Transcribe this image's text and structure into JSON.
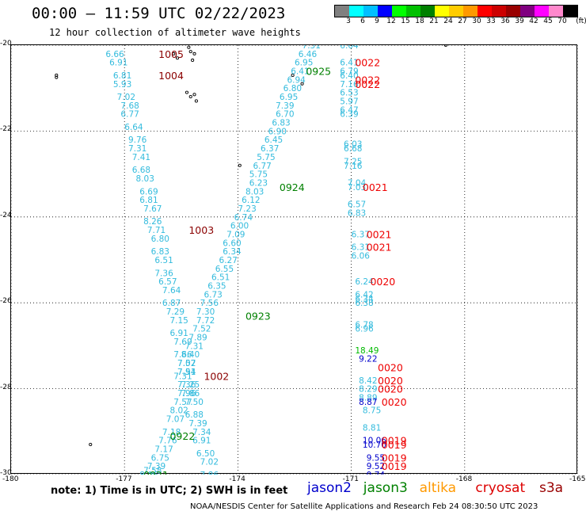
{
  "header": {
    "title": "00:00 — 11:59 UTC 02/22/2023",
    "subtitle": "12 hour collection of altimeter wave heights"
  },
  "color_legend": {
    "unit": "(ft)",
    "labels": [
      "3",
      "6",
      "9",
      "12",
      "15",
      "18",
      "21",
      "24",
      "27",
      "30",
      "33",
      "36",
      "39",
      "42",
      "45",
      "70"
    ],
    "colors": [
      "#808080",
      "#00ffff",
      "#00bfff",
      "#0000ff",
      "#00ff00",
      "#00c000",
      "#008000",
      "#ffff00",
      "#ffcc00",
      "#ff9900",
      "#ff0000",
      "#cc0000",
      "#990000",
      "#800080",
      "#ff00ff",
      "#ff88cc",
      "#000000"
    ]
  },
  "map": {
    "lat_labels": [
      "-20",
      "-22",
      "-24",
      "-26",
      "-28",
      "-30"
    ],
    "lon_labels": [
      "-180",
      "-177",
      "-174",
      "-171",
      "-168",
      "-165"
    ],
    "lon_range": [
      -180,
      -165
    ],
    "lat_range": [
      -30,
      -20
    ],
    "track_color": "#33bbdd",
    "time_color_dark": "#8b0000",
    "time_color_green": "#008000",
    "time_color_red": "#ee0000",
    "time_labels": [
      {
        "text": "1005",
        "lon": -176.1,
        "lat": -20.2,
        "color": "#8b0000"
      },
      {
        "text": "1004",
        "lon": -176.1,
        "lat": -20.7,
        "color": "#8b0000"
      },
      {
        "text": "1003",
        "lon": -175.3,
        "lat": -24.3,
        "color": "#8b0000"
      },
      {
        "text": "1002",
        "lon": -174.9,
        "lat": -27.7,
        "color": "#8b0000"
      },
      {
        "text": "0925",
        "lon": -172.2,
        "lat": -20.6,
        "color": "#008000"
      },
      {
        "text": "0924",
        "lon": -172.9,
        "lat": -23.3,
        "color": "#008000"
      },
      {
        "text": "0923",
        "lon": -173.8,
        "lat": -26.3,
        "color": "#008000"
      },
      {
        "text": "0922",
        "lon": -175.8,
        "lat": -29.1,
        "color": "#008000"
      },
      {
        "text": "0921",
        "lon": -176.5,
        "lat": -30.0,
        "color": "#008000"
      },
      {
        "text": "0022",
        "lon": -170.9,
        "lat": -20.4,
        "color": "#ee0000"
      },
      {
        "text": "0022",
        "lon": -170.9,
        "lat": -20.8,
        "color": "#ee0000"
      },
      {
        "text": "0022",
        "lon": -170.9,
        "lat": -20.9,
        "color": "#ee0000"
      },
      {
        "text": "0021",
        "lon": -170.7,
        "lat": -23.3,
        "color": "#ee0000"
      },
      {
        "text": "0021",
        "lon": -170.6,
        "lat": -24.4,
        "color": "#ee0000"
      },
      {
        "text": "0021",
        "lon": -170.6,
        "lat": -24.7,
        "color": "#ee0000"
      },
      {
        "text": "0020",
        "lon": -170.5,
        "lat": -25.5,
        "color": "#ee0000"
      },
      {
        "text": "0020",
        "lon": -170.3,
        "lat": -27.5,
        "color": "#ee0000"
      },
      {
        "text": "0020",
        "lon": -170.3,
        "lat": -27.8,
        "color": "#ee0000"
      },
      {
        "text": "0020",
        "lon": -170.3,
        "lat": -28.0,
        "color": "#ee0000"
      },
      {
        "text": "0020",
        "lon": -170.2,
        "lat": -28.3,
        "color": "#ee0000"
      },
      {
        "text": "0019",
        "lon": -170.2,
        "lat": -29.2,
        "color": "#ee0000"
      },
      {
        "text": "0019",
        "lon": -170.2,
        "lat": -29.3,
        "color": "#ee0000"
      },
      {
        "text": "0019",
        "lon": -170.2,
        "lat": -29.6,
        "color": "#ee0000"
      },
      {
        "text": "0019",
        "lon": -170.2,
        "lat": -29.8,
        "color": "#ee0000"
      }
    ],
    "wave_heights": [
      {
        "v": "6.66",
        "lon": -177.5,
        "lat": -20.2
      },
      {
        "v": "6.91",
        "lon": -177.4,
        "lat": -20.4
      },
      {
        "v": "6.81",
        "lon": -177.3,
        "lat": -20.7
      },
      {
        "v": "5.93",
        "lon": -177.3,
        "lat": -20.9
      },
      {
        "v": "7.02",
        "lon": -177.2,
        "lat": -21.2
      },
      {
        "v": "7.68",
        "lon": -177.1,
        "lat": -21.4
      },
      {
        "v": "6.77",
        "lon": -177.1,
        "lat": -21.6
      },
      {
        "v": "6.64",
        "lon": -177.0,
        "lat": -21.9
      },
      {
        "v": "9.76",
        "lon": -176.9,
        "lat": -22.2
      },
      {
        "v": "7.31",
        "lon": -176.9,
        "lat": -22.4
      },
      {
        "v": "7.41",
        "lon": -176.8,
        "lat": -22.6
      },
      {
        "v": "6.68",
        "lon": -176.8,
        "lat": -22.9
      },
      {
        "v": "8.03",
        "lon": -176.7,
        "lat": -23.1
      },
      {
        "v": "6.69",
        "lon": -176.6,
        "lat": -23.4
      },
      {
        "v": "6.81",
        "lon": -176.6,
        "lat": -23.6
      },
      {
        "v": "7.67",
        "lon": -176.5,
        "lat": -23.8
      },
      {
        "v": "8.26",
        "lon": -176.5,
        "lat": -24.1
      },
      {
        "v": "7.71",
        "lon": -176.4,
        "lat": -24.3
      },
      {
        "v": "6.80",
        "lon": -176.3,
        "lat": -24.5
      },
      {
        "v": "6.83",
        "lon": -176.3,
        "lat": -24.8
      },
      {
        "v": "6.51",
        "lon": -176.2,
        "lat": -25.0
      },
      {
        "v": "7.36",
        "lon": -176.2,
        "lat": -25.3
      },
      {
        "v": "6.57",
        "lon": -176.1,
        "lat": -25.5
      },
      {
        "v": "7.64",
        "lon": -176.0,
        "lat": -25.7
      },
      {
        "v": "6.87",
        "lon": -176.0,
        "lat": -26.0
      },
      {
        "v": "7.29",
        "lon": -175.9,
        "lat": -26.2
      },
      {
        "v": "7.15",
        "lon": -175.8,
        "lat": -26.4
      },
      {
        "v": "6.91",
        "lon": -175.8,
        "lat": -26.7
      },
      {
        "v": "7.69",
        "lon": -175.7,
        "lat": -26.9
      },
      {
        "v": "7.66",
        "lon": -175.7,
        "lat": -27.2
      },
      {
        "v": "7.02",
        "lon": -175.6,
        "lat": -27.4
      },
      {
        "v": "7.51",
        "lon": -175.6,
        "lat": -27.6
      },
      {
        "v": "7.25",
        "lon": -175.5,
        "lat": -27.9
      },
      {
        "v": "7.96",
        "lon": -175.6,
        "lat": -28.1
      },
      {
        "v": "7.57",
        "lon": -175.7,
        "lat": -28.3
      },
      {
        "v": "8.02",
        "lon": -175.8,
        "lat": -28.5
      },
      {
        "v": "7.07",
        "lon": -175.9,
        "lat": -28.7
      },
      {
        "v": "7.18",
        "lon": -176.0,
        "lat": -29.0
      },
      {
        "v": "7.76",
        "lon": -176.1,
        "lat": -29.2
      },
      {
        "v": "7.17",
        "lon": -176.2,
        "lat": -29.4
      },
      {
        "v": "6.75",
        "lon": -176.3,
        "lat": -29.6
      },
      {
        "v": "7.39",
        "lon": -176.4,
        "lat": -29.8
      },
      {
        "v": "7.58",
        "lon": -176.5,
        "lat": -29.9
      },
      {
        "v": "8.06",
        "lon": -176.6,
        "lat": -30.0
      },
      {
        "v": "7.31",
        "lon": -172.3,
        "lat": -20.0
      },
      {
        "v": "6.46",
        "lon": -172.4,
        "lat": -20.2
      },
      {
        "v": "6.95",
        "lon": -172.5,
        "lat": -20.4
      },
      {
        "v": "6.41",
        "lon": -172.6,
        "lat": -20.6
      },
      {
        "v": "6.94",
        "lon": -172.7,
        "lat": -20.8
      },
      {
        "v": "6.80",
        "lon": -172.8,
        "lat": -21.0
      },
      {
        "v": "6.95",
        "lon": -172.9,
        "lat": -21.2
      },
      {
        "v": "7.39",
        "lon": -173.0,
        "lat": -21.4
      },
      {
        "v": "6.70",
        "lon": -173.0,
        "lat": -21.6
      },
      {
        "v": "6.83",
        "lon": -173.1,
        "lat": -21.8
      },
      {
        "v": "6.90",
        "lon": -173.2,
        "lat": -22.0
      },
      {
        "v": "6.45",
        "lon": -173.3,
        "lat": -22.2
      },
      {
        "v": "6.37",
        "lon": -173.4,
        "lat": -22.4
      },
      {
        "v": "5.75",
        "lon": -173.5,
        "lat": -22.6
      },
      {
        "v": "6.77",
        "lon": -173.6,
        "lat": -22.8
      },
      {
        "v": "5.75",
        "lon": -173.7,
        "lat": -23.0
      },
      {
        "v": "6.23",
        "lon": -173.7,
        "lat": -23.2
      },
      {
        "v": "8.03",
        "lon": -173.8,
        "lat": -23.4
      },
      {
        "v": "6.12",
        "lon": -173.9,
        "lat": -23.6
      },
      {
        "v": "7.23",
        "lon": -174.0,
        "lat": -23.8
      },
      {
        "v": "6.74",
        "lon": -174.1,
        "lat": -24.0
      },
      {
        "v": "6.00",
        "lon": -174.2,
        "lat": -24.2
      },
      {
        "v": "7.09",
        "lon": -174.3,
        "lat": -24.4
      },
      {
        "v": "6.60",
        "lon": -174.4,
        "lat": -24.6
      },
      {
        "v": "6.34",
        "lon": -174.4,
        "lat": -24.8
      },
      {
        "v": "6.27",
        "lon": -174.5,
        "lat": -25.0
      },
      {
        "v": "6.55",
        "lon": -174.6,
        "lat": -25.2
      },
      {
        "v": "6.51",
        "lon": -174.7,
        "lat": -25.4
      },
      {
        "v": "6.35",
        "lon": -174.8,
        "lat": -25.6
      },
      {
        "v": "6.73",
        "lon": -174.9,
        "lat": -25.8
      },
      {
        "v": "7.56",
        "lon": -175.0,
        "lat": -26.0
      },
      {
        "v": "7.30",
        "lon": -175.1,
        "lat": -26.2
      },
      {
        "v": "7.72",
        "lon": -175.1,
        "lat": -26.4
      },
      {
        "v": "7.52",
        "lon": -175.2,
        "lat": -26.6
      },
      {
        "v": "7.89",
        "lon": -175.3,
        "lat": -26.8
      },
      {
        "v": "7.31",
        "lon": -175.4,
        "lat": -27.0
      },
      {
        "v": "8.40",
        "lon": -175.5,
        "lat": -27.2
      },
      {
        "v": "7.57",
        "lon": -175.6,
        "lat": -27.4
      },
      {
        "v": "7.94",
        "lon": -175.6,
        "lat": -27.6
      },
      {
        "v": "7.31",
        "lon": -175.7,
        "lat": -27.7
      },
      {
        "v": "7.36",
        "lon": -175.6,
        "lat": -27.9
      },
      {
        "v": "7.86",
        "lon": -175.5,
        "lat": -28.1
      },
      {
        "v": "7.50",
        "lon": -175.4,
        "lat": -28.3
      },
      {
        "v": "6.88",
        "lon": -175.4,
        "lat": -28.6
      },
      {
        "v": "7.39",
        "lon": -175.3,
        "lat": -28.8
      },
      {
        "v": "7.34",
        "lon": -175.2,
        "lat": -29.0
      },
      {
        "v": "6.91",
        "lon": -175.2,
        "lat": -29.2
      },
      {
        "v": "6.50",
        "lon": -175.1,
        "lat": -29.5
      },
      {
        "v": "7.02",
        "lon": -175.0,
        "lat": -29.7
      },
      {
        "v": "7.86",
        "lon": -175.0,
        "lat": -30.0
      },
      {
        "v": "6.64",
        "lon": -171.3,
        "lat": -20.0
      },
      {
        "v": "6.41",
        "lon": -171.3,
        "lat": -20.4
      },
      {
        "v": "6.79",
        "lon": -171.3,
        "lat": -20.6
      },
      {
        "v": "6.40",
        "lon": -171.3,
        "lat": -20.7
      },
      {
        "v": "7.16",
        "lon": -171.3,
        "lat": -20.9
      },
      {
        "v": "6.53",
        "lon": -171.3,
        "lat": -21.1
      },
      {
        "v": "5.97",
        "lon": -171.3,
        "lat": -21.3
      },
      {
        "v": "6.47",
        "lon": -171.3,
        "lat": -21.5
      },
      {
        "v": "6.39",
        "lon": -171.3,
        "lat": -21.6
      },
      {
        "v": "6.03",
        "lon": -171.2,
        "lat": -22.3
      },
      {
        "v": "6.68",
        "lon": -171.2,
        "lat": -22.4
      },
      {
        "v": "7.25",
        "lon": -171.2,
        "lat": -22.7
      },
      {
        "v": "7.16",
        "lon": -171.2,
        "lat": -22.8
      },
      {
        "v": "7.04",
        "lon": -171.1,
        "lat": -23.2
      },
      {
        "v": "7.03",
        "lon": -171.1,
        "lat": -23.3
      },
      {
        "v": "6.57",
        "lon": -171.1,
        "lat": -23.7
      },
      {
        "v": "6.83",
        "lon": -171.1,
        "lat": -23.9
      },
      {
        "v": "6.37",
        "lon": -171.0,
        "lat": -24.4
      },
      {
        "v": "6.31",
        "lon": -171.0,
        "lat": -24.7
      },
      {
        "v": "6.06",
        "lon": -171.0,
        "lat": -24.9
      },
      {
        "v": "6.24",
        "lon": -170.9,
        "lat": -25.5
      },
      {
        "v": "6.42",
        "lon": -170.9,
        "lat": -25.8
      },
      {
        "v": "6.34",
        "lon": -170.9,
        "lat": -25.9
      },
      {
        "v": "6.38",
        "lon": -170.9,
        "lat": -26.0
      },
      {
        "v": "6.78",
        "lon": -170.9,
        "lat": -26.5
      },
      {
        "v": "6.96",
        "lon": -170.9,
        "lat": -26.6
      },
      {
        "v": "18.49",
        "lon": -170.9,
        "lat": -27.1,
        "c": "#00bb00"
      },
      {
        "v": "9.22",
        "lon": -170.8,
        "lat": -27.3,
        "c": "#0000cc"
      },
      {
        "v": "8.42",
        "lon": -170.8,
        "lat": -27.8
      },
      {
        "v": "8.29",
        "lon": -170.8,
        "lat": -28.0
      },
      {
        "v": "8.89",
        "lon": -170.8,
        "lat": -28.2
      },
      {
        "v": "8.87",
        "lon": -170.8,
        "lat": -28.3,
        "c": "#0000cc"
      },
      {
        "v": "8.75",
        "lon": -170.7,
        "lat": -28.5
      },
      {
        "v": "8.81",
        "lon": -170.7,
        "lat": -28.9
      },
      {
        "v": "10.06",
        "lon": -170.7,
        "lat": -29.2,
        "c": "#0000cc"
      },
      {
        "v": "10.70",
        "lon": -170.7,
        "lat": -29.3,
        "c": "#0000cc"
      },
      {
        "v": "9.55",
        "lon": -170.6,
        "lat": -29.6,
        "c": "#0000cc"
      },
      {
        "v": "9.52",
        "lon": -170.6,
        "lat": -29.8,
        "c": "#0000cc"
      },
      {
        "v": "9.74",
        "lon": -170.6,
        "lat": -30.0,
        "c": "#0000cc"
      }
    ]
  },
  "note": "note:  1) Time is in UTC;  2) SWH is in feet",
  "satellites": [
    {
      "name": "jason2",
      "color": "#0000cc"
    },
    {
      "name": "jason3",
      "color": "#008000"
    },
    {
      "name": "altika",
      "color": "#ff9900"
    },
    {
      "name": "cryosat",
      "color": "#dd0000"
    },
    {
      "name": "s3a",
      "color": "#990000"
    }
  ],
  "footer": "NOAA/NESDIS Center for Satellite Applications and Research     Feb 24 08:30:50 UTC 2023"
}
